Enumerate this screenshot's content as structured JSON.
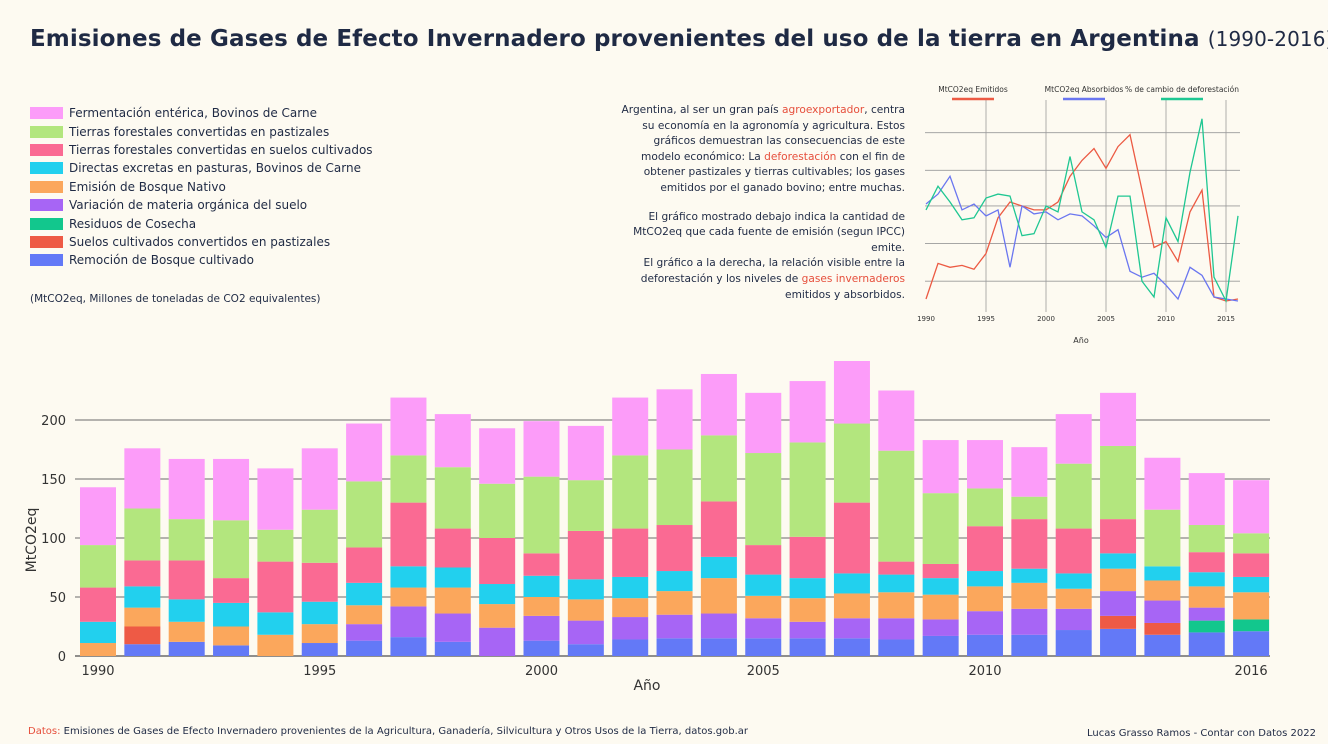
{
  "title": {
    "main": "Emisiones de Gases de Efecto Invernadero provenientes del uso de la tierra en Argentina",
    "years": "(1990-2016)"
  },
  "legend": [
    {
      "label": "Fermentación entérica, Bovinos de Carne",
      "color": "#fc9cf9"
    },
    {
      "label": "Tierras forestales convertidas en pastizales",
      "color": "#b3e67e"
    },
    {
      "label": "Tierras forestales convertidas en suelos cultivados",
      "color": "#fa6a93"
    },
    {
      "label": "Directas excretas en pasturas, Bovinos de Carne",
      "color": "#22d0ee"
    },
    {
      "label": "Emisión de Bosque Nativo",
      "color": "#fba75c"
    },
    {
      "label": "Variación de materia orgánica del suelo",
      "color": "#a765f5"
    },
    {
      "label": "Residuos de Cosecha",
      "color": "#12c78d"
    },
    {
      "label": "Suelos cultivados convertidos en pastizales",
      "color": "#ee5a45"
    },
    {
      "label": "Remoción de Bosque cultivado",
      "color": "#6379f7"
    }
  ],
  "units_note": "(MtCO2eq, Millones de toneladas de CO2 equivalentes)",
  "description": {
    "p1": [
      {
        "text": "Argentina, al ser un gran país ",
        "hl": false
      },
      {
        "text": "agroexportador",
        "hl": true
      },
      {
        "text": ", centra su economía en la agronomía y agricultura. Estos gráficos demuestran las consecuencias de este modelo económico: La ",
        "hl": false
      },
      {
        "text": "deforestación",
        "hl": true
      },
      {
        "text": " con el fin de obtener pastizales y tierras cultivables; los gases emitidos por el ganado bovino; entre muchas.",
        "hl": false
      }
    ],
    "p2": [
      {
        "text": "El gráfico mostrado debajo indica la cantidad de MtCO2eq que cada fuente de emisión (segun IPCC) emite.",
        "hl": false
      }
    ],
    "p3": [
      {
        "text": "El gráfico a la derecha, la relación visible entre la deforestación y los niveles de ",
        "hl": false
      },
      {
        "text": "gases invernaderos",
        "hl": true
      },
      {
        "text": " emitidos y absorbidos.",
        "hl": false
      }
    ]
  },
  "footer": {
    "source_label": "Datos:",
    "source_text": " Emisiones de Gases de Efecto Invernadero provenientes de la Agricultura, Ganadería, Silvicultura y Otros Usos de la Tierra, datos.gob.ar",
    "author": "Lucas Grasso Ramos - Contar con Datos 2022"
  },
  "chart_data": [
    {
      "type": "bar",
      "stacked": true,
      "title": "",
      "xlabel": "Año",
      "ylabel": "MtCO2eq",
      "ylim": [
        0,
        250
      ],
      "yticks": [
        0,
        50,
        100,
        150,
        200
      ],
      "x_tick_labels": [
        "1990",
        "1995",
        "2000",
        "2005",
        "2010",
        "2016"
      ],
      "categories": [
        1990,
        1991,
        1992,
        1993,
        1994,
        1995,
        1996,
        1997,
        1998,
        1999,
        2000,
        2001,
        2002,
        2003,
        2004,
        2005,
        2006,
        2007,
        2008,
        2009,
        2010,
        2011,
        2012,
        2013,
        2014,
        2015,
        2016
      ],
      "series": [
        {
          "name": "Remoción de Bosque cultivado",
          "color": "#6379f7",
          "values": [
            0,
            10,
            12,
            9,
            0,
            11,
            13,
            16,
            12,
            0,
            13,
            10,
            14,
            15,
            15,
            15,
            15,
            15,
            14,
            17,
            18,
            18,
            22,
            23,
            18,
            20,
            21
          ]
        },
        {
          "name": "Suelos cultivados convertidos en pastizales",
          "color": "#ee5a45",
          "values": [
            0,
            15,
            0,
            0,
            0,
            0,
            0,
            0,
            0,
            0,
            0,
            0,
            0,
            0,
            0,
            0,
            0,
            0,
            0,
            0,
            0,
            0,
            0,
            11,
            10,
            0,
            0
          ]
        },
        {
          "name": "Residuos de Cosecha",
          "color": "#12c78d",
          "values": [
            0,
            0,
            0,
            0,
            0,
            0,
            0,
            0,
            0,
            0,
            0,
            0,
            0,
            0,
            0,
            0,
            0,
            0,
            0,
            0,
            0,
            0,
            0,
            0,
            0,
            10,
            10
          ]
        },
        {
          "name": "Variación de materia orgánica del suelo",
          "color": "#a765f5",
          "values": [
            0,
            0,
            0,
            0,
            0,
            0,
            14,
            26,
            24,
            24,
            21,
            20,
            19,
            20,
            21,
            17,
            14,
            17,
            18,
            14,
            20,
            22,
            18,
            21,
            19,
            11,
            0
          ]
        },
        {
          "name": "Emisión de Bosque Nativo",
          "color": "#fba75c",
          "values": [
            11,
            16,
            17,
            16,
            18,
            16,
            16,
            16,
            22,
            20,
            16,
            18,
            16,
            20,
            30,
            19,
            20,
            21,
            22,
            21,
            21,
            22,
            17,
            19,
            17,
            18,
            23
          ]
        },
        {
          "name": "Directas excretas en pasturas, Bovinos de Carne",
          "color": "#22d0ee",
          "values": [
            18,
            18,
            19,
            20,
            19,
            19,
            19,
            18,
            17,
            17,
            18,
            17,
            18,
            17,
            18,
            18,
            17,
            17,
            15,
            14,
            13,
            12,
            13,
            13,
            12,
            12,
            13
          ]
        },
        {
          "name": "Tierras forestales convertidas en suelos cultivados",
          "color": "#fa6a93",
          "values": [
            29,
            22,
            33,
            21,
            43,
            33,
            30,
            54,
            33,
            39,
            19,
            41,
            41,
            39,
            47,
            25,
            35,
            60,
            11,
            12,
            38,
            42,
            38,
            29,
            0,
            17,
            20
          ]
        },
        {
          "name": "Tierras forestales convertidas en pastizales",
          "color": "#b3e67e",
          "values": [
            36,
            44,
            35,
            49,
            27,
            45,
            56,
            40,
            52,
            46,
            65,
            43,
            62,
            64,
            56,
            78,
            80,
            67,
            94,
            60,
            32,
            19,
            55,
            62,
            48,
            23,
            17
          ]
        },
        {
          "name": "Fermentación entérica, Bovinos de Carne",
          "color": "#fc9cf9",
          "values": [
            49,
            51,
            51,
            52,
            52,
            52,
            49,
            49,
            45,
            47,
            47,
            46,
            49,
            51,
            52,
            51,
            52,
            53,
            51,
            45,
            41,
            42,
            42,
            45,
            44,
            44,
            45
          ]
        }
      ]
    },
    {
      "type": "line",
      "title": "",
      "xlabel": "Año",
      "ylabel": "",
      "x": [
        1990,
        1991,
        1992,
        1993,
        1994,
        1995,
        1996,
        1997,
        1998,
        1999,
        2000,
        2001,
        2002,
        2003,
        2004,
        2005,
        2006,
        2007,
        2008,
        2009,
        2010,
        2011,
        2012,
        2013,
        2014,
        2015,
        2016
      ],
      "x_tick_labels": [
        "1990",
        "1995",
        "2000",
        "2005",
        "2010",
        "2015"
      ],
      "ylim": [
        0,
        10
      ],
      "series": [
        {
          "name": "MtCO2eq Emitidos",
          "color": "#ec5a43",
          "values": [
            0.1,
            1.9,
            1.7,
            1.8,
            1.6,
            2.4,
            4.2,
            5.0,
            4.8,
            4.6,
            4.6,
            5.0,
            6.3,
            7.1,
            7.7,
            6.7,
            7.8,
            8.4,
            5.6,
            2.7,
            3.0,
            2.0,
            4.5,
            5.6,
            0.2,
            0.0,
            0.1
          ]
        },
        {
          "name": "MtCO2eq Absorbidos",
          "color": "#6a76f0",
          "values": [
            4.9,
            5.4,
            6.3,
            4.6,
            4.9,
            4.3,
            4.6,
            1.7,
            4.8,
            4.4,
            4.5,
            4.1,
            4.4,
            4.3,
            3.8,
            3.2,
            3.6,
            1.5,
            1.2,
            1.4,
            0.8,
            0.1,
            1.7,
            1.3,
            0.2,
            0.1,
            0.0
          ]
        },
        {
          "name": "% de cambio de deforestación",
          "color": "#1fc792",
          "values": [
            4.6,
            5.8,
            5.0,
            4.1,
            4.2,
            5.2,
            5.4,
            5.3,
            3.3,
            3.4,
            4.8,
            4.5,
            7.3,
            4.5,
            4.1,
            2.7,
            5.3,
            5.3,
            1.0,
            0.2,
            4.2,
            3.0,
            6.5,
            9.2,
            1.2,
            0.0,
            4.3
          ]
        }
      ]
    }
  ]
}
